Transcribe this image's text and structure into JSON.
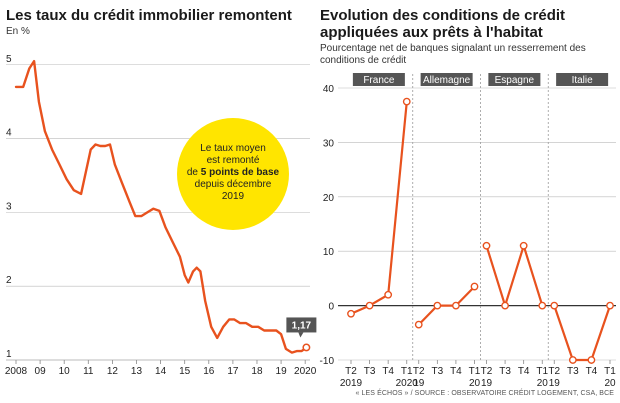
{
  "left": {
    "title": "Les taux du crédit immobilier remontent",
    "unit": "En %",
    "callout": {
      "line1": "Le taux moyen",
      "line2": "est remonté",
      "line3_pre": "de ",
      "line3_bold": "5 points de base",
      "line4": "depuis décembre",
      "line5": "2019",
      "color": "#ffe500"
    },
    "end_label": "1,17"
  },
  "right": {
    "title": "Evolution des conditions de crédit appliquées aux prêts à l'habitat",
    "subtitle": "Pourcentage net de banques signalant un resserrement des conditions de crédit"
  },
  "source": "« LES ÉCHOS » / SOURCE : OBSERVATOIRE CRÉDIT LOGEMENT, CSA, BCE",
  "colors": {
    "line": "#e8521e",
    "grid": "#bbbbbb",
    "panel_label_bg": "#555555"
  },
  "chart_data": [
    {
      "type": "line",
      "title": "Les taux du crédit immobilier remontent",
      "ylabel": "En %",
      "xlim": [
        2008,
        2020.2
      ],
      "ylim": [
        1,
        5.2
      ],
      "yticks": [
        1,
        2,
        3,
        4,
        5
      ],
      "xticks": [
        "2008",
        "09",
        "10",
        "11",
        "12",
        "13",
        "14",
        "15",
        "16",
        "17",
        "18",
        "19",
        "2020"
      ],
      "xtick_values": [
        2008,
        2009,
        2010,
        2011,
        2012,
        2013,
        2014,
        2015,
        2016,
        2017,
        2018,
        2019,
        2020
      ],
      "grid": true,
      "end_value": 1.17,
      "x": [
        2008.0,
        2008.3,
        2008.55,
        2008.75,
        2008.95,
        2009.2,
        2009.5,
        2009.8,
        2010.1,
        2010.4,
        2010.7,
        2010.9,
        2011.1,
        2011.3,
        2011.5,
        2011.7,
        2011.9,
        2012.1,
        2012.4,
        2012.7,
        2012.95,
        2013.2,
        2013.45,
        2013.7,
        2013.95,
        2014.2,
        2014.5,
        2014.8,
        2015.0,
        2015.15,
        2015.35,
        2015.5,
        2015.65,
        2015.85,
        2016.1,
        2016.35,
        2016.6,
        2016.85,
        2017.05,
        2017.3,
        2017.55,
        2017.8,
        2018.05,
        2018.3,
        2018.55,
        2018.8,
        2019.0,
        2019.2,
        2019.45,
        2019.65,
        2019.85,
        2020.05
      ],
      "y": [
        4.7,
        4.7,
        4.95,
        5.05,
        4.5,
        4.1,
        3.85,
        3.65,
        3.45,
        3.3,
        3.25,
        3.55,
        3.85,
        3.92,
        3.9,
        3.9,
        3.92,
        3.65,
        3.4,
        3.15,
        2.95,
        2.95,
        3.0,
        3.05,
        3.02,
        2.8,
        2.6,
        2.4,
        2.15,
        2.05,
        2.2,
        2.25,
        2.2,
        1.8,
        1.45,
        1.3,
        1.45,
        1.55,
        1.55,
        1.5,
        1.5,
        1.45,
        1.45,
        1.4,
        1.4,
        1.4,
        1.35,
        1.15,
        1.1,
        1.12,
        1.12,
        1.17
      ]
    },
    {
      "type": "line",
      "title": "Evolution des conditions de crédit appliquées aux prêts à l'habitat",
      "subtitle": "Pourcentage net de banques signalant un resserrement des conditions de crédit",
      "ylim": [
        -10,
        40
      ],
      "yticks": [
        -10,
        0,
        10,
        20,
        30,
        40
      ],
      "grid": true,
      "categories": [
        "T2 2019",
        "T3",
        "T4",
        "T1 2020"
      ],
      "panels": [
        {
          "name": "France",
          "tick_top": [
            "T2",
            "T3",
            "T4",
            "T1"
          ],
          "tick_bottom": [
            "2019",
            "",
            "",
            "2020"
          ],
          "values": [
            -1.5,
            0,
            2,
            37.5
          ]
        },
        {
          "name": "Allemagne",
          "tick_top": [
            "T2",
            "T3",
            "T4",
            "T1"
          ],
          "tick_bottom": [
            "19",
            "",
            "",
            "20"
          ],
          "values": [
            -3.5,
            0,
            0,
            3.5
          ]
        },
        {
          "name": "Espagne",
          "tick_top": [
            "T2",
            "T3",
            "T4",
            "T1"
          ],
          "tick_bottom": [
            "19",
            "",
            "",
            "20"
          ],
          "values": [
            11,
            0,
            11,
            0
          ]
        },
        {
          "name": "Italie",
          "tick_top": [
            "T2",
            "T3",
            "T4",
            "T1"
          ],
          "tick_bottom": [
            "19",
            "",
            "",
            "20"
          ],
          "values": [
            0,
            -10,
            -10,
            0
          ]
        }
      ]
    }
  ]
}
